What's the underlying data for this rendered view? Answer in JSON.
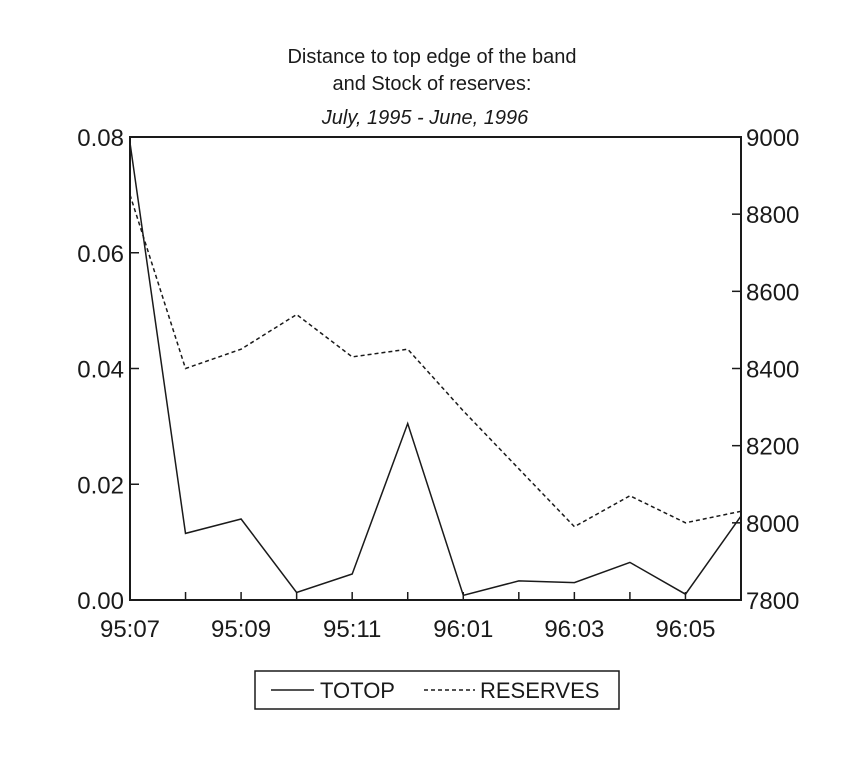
{
  "chart_data": {
    "type": "line",
    "title": [
      "Distance to top edge of the band",
      "and Stock of reserves:"
    ],
    "subtitle": "July, 1995 - June, 1996",
    "x": [
      "95:07",
      "95:08",
      "95:09",
      "95:10",
      "95:11",
      "95:12",
      "96:01",
      "96:02",
      "96:03",
      "96:04",
      "96:05",
      "96:06"
    ],
    "x_tick_labels": [
      "95:07",
      "95:09",
      "95:11",
      "96:01",
      "96:03",
      "96:05"
    ],
    "y_left": {
      "range": [
        0,
        0.08
      ],
      "tick_values": [
        0,
        0.02,
        0.04,
        0.06,
        0.08
      ],
      "tick_labels": [
        "0.00",
        "0.02",
        "0.04",
        "0.06",
        "0.08"
      ]
    },
    "y_right": {
      "range": [
        7800,
        9000
      ],
      "tick_values": [
        7800,
        8000,
        8200,
        8400,
        8600,
        8800,
        9000
      ],
      "tick_labels": [
        "7800",
        "8000",
        "8200",
        "8400",
        "8600",
        "8800",
        "9000"
      ]
    },
    "series": [
      {
        "name": "TOTOP",
        "axis": "left",
        "style": "solid",
        "values": [
          0.079,
          0.0115,
          0.014,
          0.0013,
          0.0045,
          0.0305,
          0.0008,
          0.0033,
          0.003,
          0.0065,
          0.001,
          0.0145
        ]
      },
      {
        "name": "RESERVES",
        "axis": "right",
        "style": "dashed",
        "values": [
          8850,
          8400,
          8450,
          8540,
          8430,
          8450,
          8290,
          8140,
          7990,
          8070,
          8000,
          8030
        ]
      }
    ],
    "legend_placement": "bottom-center",
    "grid": false,
    "colors": {
      "line": "#1a1a1a",
      "axis": "#1a1a1a",
      "background": "#ffffff"
    }
  }
}
